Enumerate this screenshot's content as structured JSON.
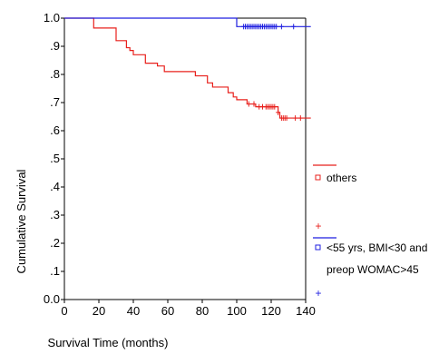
{
  "chart_data": {
    "type": "line",
    "subtype": "kaplan-meier survival curve",
    "title": "",
    "xlabel": "Survival Time (months)",
    "ylabel": "Cumulative Survival",
    "xlim": [
      0,
      140
    ],
    "ylim": [
      0.0,
      1.0
    ],
    "x_ticks": [
      "0",
      "20",
      "40",
      "60",
      "80",
      "100",
      "120",
      "140"
    ],
    "y_ticks": [
      "0.0",
      ".1",
      ".2",
      ".3",
      ".4",
      ".5",
      ".6",
      ".7",
      ".8",
      ".9",
      "1.0"
    ],
    "grid": false,
    "legend_position": "right",
    "series": [
      {
        "name": "others",
        "color": "#e8201c",
        "steps": [
          [
            0,
            1.0
          ],
          [
            17,
            0.965
          ],
          [
            30,
            0.92
          ],
          [
            36,
            0.895
          ],
          [
            38,
            0.885
          ],
          [
            40,
            0.87
          ],
          [
            47,
            0.84
          ],
          [
            54,
            0.83
          ],
          [
            58,
            0.81
          ],
          [
            76,
            0.795
          ],
          [
            83,
            0.77
          ],
          [
            86,
            0.755
          ],
          [
            95,
            0.735
          ],
          [
            98,
            0.72
          ],
          [
            100,
            0.71
          ],
          [
            106,
            0.695
          ],
          [
            111,
            0.685
          ],
          [
            124,
            0.665
          ],
          [
            125,
            0.645
          ],
          [
            143,
            0.645
          ]
        ],
        "censored_x": [
          107,
          110,
          113,
          115,
          117,
          118,
          119,
          120,
          121,
          122,
          124,
          126,
          127,
          128,
          129,
          134,
          137
        ]
      },
      {
        "name": "<55 yrs, BMI<30 and preop WOMAC>45",
        "color": "#1f1fe0",
        "steps": [
          [
            0,
            1.0
          ],
          [
            100,
            0.97
          ],
          [
            143,
            0.97
          ]
        ],
        "censored_x": [
          104,
          105,
          106,
          107,
          108,
          109,
          110,
          111,
          112,
          113,
          114,
          115,
          116,
          117,
          118,
          119,
          120,
          121,
          122,
          123,
          126,
          133
        ]
      }
    ],
    "legend": [
      {
        "label": "others",
        "line_color": "#e8201c",
        "censor_symbol": "+"
      },
      {
        "label": "<55 yrs, BMI<30 and preop WOMAC>45",
        "line1": "<55 yrs, BMI<30 and",
        "line2": "preop WOMAC>45",
        "line_color": "#1f1fe0",
        "censor_symbol": "+"
      }
    ]
  }
}
